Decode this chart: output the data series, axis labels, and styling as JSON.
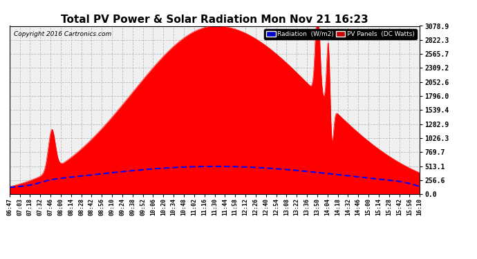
{
  "title": "Total PV Power & Solar Radiation Mon Nov 21 16:23",
  "copyright": "Copyright 2016 Cartronics.com",
  "yticks": [
    0.0,
    256.6,
    513.1,
    769.7,
    1026.3,
    1282.9,
    1539.4,
    1796.0,
    2052.6,
    2309.2,
    2565.7,
    2822.3,
    3078.9
  ],
  "ymax": 3078.9,
  "legend_radiation_label": "Radiation  (W/m2)",
  "legend_pv_label": "PV Panels  (DC Watts)",
  "legend_radiation_bg": "#0000cc",
  "legend_pv_bg": "#cc0000",
  "bg_color": "#ffffff",
  "plot_bg_color": "#f0f0f0",
  "grid_color": "#bbbbbb",
  "pv_color": "#ff0000",
  "radiation_color": "#0000ff",
  "title_fontsize": 11,
  "x_labels": [
    "06:47",
    "07:03",
    "07:18",
    "07:32",
    "07:46",
    "08:00",
    "08:14",
    "08:28",
    "08:42",
    "08:56",
    "09:10",
    "09:24",
    "09:38",
    "09:52",
    "10:06",
    "10:20",
    "10:34",
    "10:48",
    "11:02",
    "11:16",
    "11:30",
    "11:44",
    "11:58",
    "12:12",
    "12:26",
    "12:40",
    "12:54",
    "13:08",
    "13:22",
    "13:36",
    "13:50",
    "14:04",
    "14:18",
    "14:32",
    "14:46",
    "15:00",
    "15:14",
    "15:28",
    "15:42",
    "15:56",
    "16:10"
  ]
}
